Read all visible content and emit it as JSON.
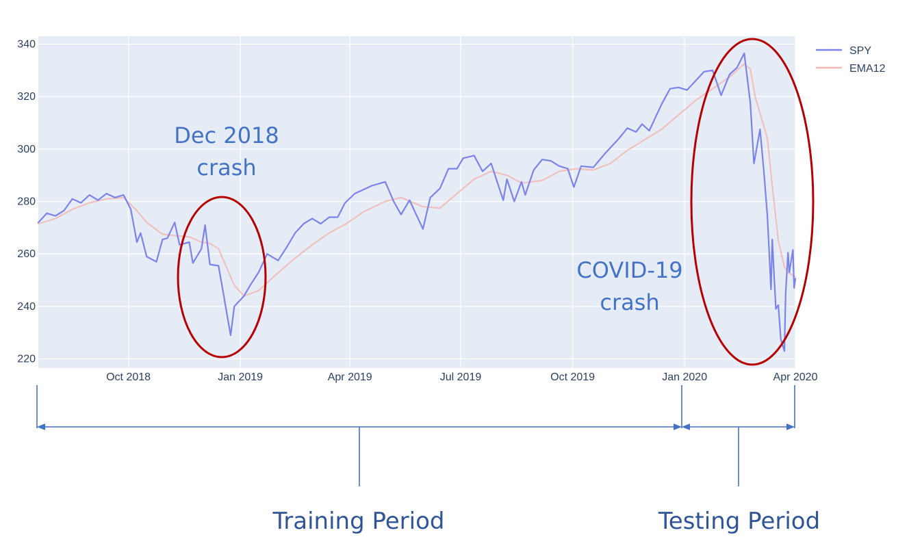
{
  "chart_data": {
    "type": "line",
    "title": "",
    "xlabel": "",
    "ylabel": "",
    "ylim": [
      216.5,
      343
    ],
    "xlim": [
      "2018-07-19",
      "2020-04-01"
    ],
    "grid": true,
    "legend_position": "top-right",
    "x_ticks": [
      {
        "date": "2018-10-01",
        "label": "Oct 2018"
      },
      {
        "date": "2019-01-01",
        "label": "Jan 2019"
      },
      {
        "date": "2019-04-01",
        "label": "Apr 2019"
      },
      {
        "date": "2019-07-01",
        "label": "Jul 2019"
      },
      {
        "date": "2019-10-01",
        "label": "Oct 2019"
      },
      {
        "date": "2020-01-01",
        "label": "Jan 2020"
      },
      {
        "date": "2020-04-01",
        "label": "Apr 2020"
      }
    ],
    "y_ticks": [
      220,
      240,
      260,
      280,
      300,
      320,
      340
    ],
    "series": [
      {
        "name": "SPY",
        "color": "#7b83eb",
        "x": [
          "2018-07-19",
          "2018-07-26",
          "2018-08-02",
          "2018-08-09",
          "2018-08-16",
          "2018-08-23",
          "2018-08-30",
          "2018-09-06",
          "2018-09-13",
          "2018-09-20",
          "2018-09-27",
          "2018-10-03",
          "2018-10-08",
          "2018-10-11",
          "2018-10-16",
          "2018-10-24",
          "2018-10-29",
          "2018-11-02",
          "2018-11-08",
          "2018-11-12",
          "2018-11-20",
          "2018-11-23",
          "2018-11-30",
          "2018-12-03",
          "2018-12-07",
          "2018-12-14",
          "2018-12-18",
          "2018-12-24",
          "2018-12-27",
          "2019-01-04",
          "2019-01-09",
          "2019-01-16",
          "2019-01-23",
          "2019-02-01",
          "2019-02-08",
          "2019-02-15",
          "2019-02-22",
          "2019-03-01",
          "2019-03-08",
          "2019-03-15",
          "2019-03-22",
          "2019-03-28",
          "2019-04-05",
          "2019-04-12",
          "2019-04-19",
          "2019-04-30",
          "2019-05-07",
          "2019-05-13",
          "2019-05-20",
          "2019-05-31",
          "2019-06-06",
          "2019-06-14",
          "2019-06-21",
          "2019-06-28",
          "2019-07-03",
          "2019-07-12",
          "2019-07-19",
          "2019-07-26",
          "2019-08-05",
          "2019-08-08",
          "2019-08-14",
          "2019-08-20",
          "2019-08-23",
          "2019-08-30",
          "2019-09-06",
          "2019-09-13",
          "2019-09-20",
          "2019-09-27",
          "2019-10-02",
          "2019-10-08",
          "2019-10-18",
          "2019-10-28",
          "2019-11-08",
          "2019-11-15",
          "2019-11-22",
          "2019-11-27",
          "2019-12-03",
          "2019-12-13",
          "2019-12-20",
          "2019-12-27",
          "2020-01-03",
          "2020-01-10",
          "2020-01-17",
          "2020-01-24",
          "2020-01-31",
          "2020-02-07",
          "2020-02-13",
          "2020-02-19",
          "2020-02-24",
          "2020-02-27",
          "2020-03-03",
          "2020-03-06",
          "2020-03-09",
          "2020-03-12",
          "2020-03-13",
          "2020-03-16",
          "2020-03-18",
          "2020-03-20",
          "2020-03-23",
          "2020-03-24",
          "2020-03-26",
          "2020-03-27",
          "2020-03-30",
          "2020-03-31",
          "2020-04-01"
        ],
        "values": [
          272.0,
          275.5,
          274.5,
          276.5,
          281.0,
          279.5,
          282.5,
          280.5,
          283.0,
          281.5,
          282.5,
          277.0,
          264.5,
          268.0,
          259.0,
          257.0,
          265.5,
          266.0,
          272.0,
          263.5,
          264.5,
          256.5,
          262.0,
          271.0,
          256.0,
          255.5,
          245.0,
          229.0,
          240.0,
          244.0,
          248.0,
          253.0,
          260.0,
          257.5,
          262.5,
          268.0,
          271.5,
          273.5,
          271.5,
          274.0,
          274.0,
          279.5,
          283.0,
          284.5,
          286.0,
          287.5,
          280.0,
          275.0,
          280.5,
          269.5,
          281.5,
          285.0,
          292.5,
          292.5,
          296.5,
          297.5,
          291.5,
          294.5,
          280.5,
          288.5,
          280.0,
          287.5,
          282.5,
          292.0,
          296.0,
          295.5,
          293.5,
          292.5,
          285.5,
          293.5,
          293.0,
          298.5,
          304.0,
          308.0,
          306.5,
          309.5,
          307.0,
          317.0,
          323.0,
          323.5,
          322.5,
          326.0,
          329.5,
          330.0,
          320.5,
          328.5,
          331.0,
          336.5,
          317.5,
          294.5,
          307.5,
          292.0,
          274.5,
          246.5,
          265.5,
          239.0,
          240.5,
          227.5,
          223.0,
          245.0,
          260.5,
          253.0,
          261.5,
          247.0,
          250.5
        ]
      },
      {
        "name": "EMA12",
        "color": "#f2b8b5",
        "x": [
          "2018-07-19",
          "2018-08-02",
          "2018-08-16",
          "2018-08-30",
          "2018-09-13",
          "2018-09-27",
          "2018-10-08",
          "2018-10-16",
          "2018-10-29",
          "2018-11-08",
          "2018-11-20",
          "2018-11-30",
          "2018-12-07",
          "2018-12-14",
          "2018-12-21",
          "2018-12-27",
          "2019-01-04",
          "2019-01-16",
          "2019-01-30",
          "2019-02-14",
          "2019-03-01",
          "2019-03-15",
          "2019-03-29",
          "2019-04-12",
          "2019-04-30",
          "2019-05-13",
          "2019-05-31",
          "2019-06-14",
          "2019-06-28",
          "2019-07-12",
          "2019-07-26",
          "2019-08-08",
          "2019-08-20",
          "2019-09-06",
          "2019-09-20",
          "2019-10-04",
          "2019-10-18",
          "2019-11-01",
          "2019-11-15",
          "2019-11-29",
          "2019-12-13",
          "2019-12-27",
          "2020-01-10",
          "2020-01-24",
          "2020-02-07",
          "2020-02-19",
          "2020-02-24",
          "2020-02-28",
          "2020-03-04",
          "2020-03-09",
          "2020-03-13",
          "2020-03-18",
          "2020-03-23",
          "2020-03-26",
          "2020-03-31",
          "2020-04-01"
        ],
        "values": [
          271.5,
          273.5,
          277.0,
          279.5,
          281.0,
          281.5,
          276.5,
          272.0,
          267.5,
          267.0,
          266.5,
          264.5,
          264.0,
          262.0,
          254.5,
          248.0,
          244.0,
          246.0,
          252.0,
          258.0,
          263.5,
          268.0,
          271.5,
          276.0,
          280.0,
          281.5,
          278.0,
          277.5,
          283.0,
          288.5,
          291.5,
          290.0,
          287.0,
          288.0,
          291.5,
          292.5,
          292.0,
          294.5,
          299.5,
          303.5,
          307.5,
          313.0,
          318.5,
          323.0,
          327.5,
          332.5,
          330.5,
          320.0,
          312.0,
          304.0,
          286.0,
          265.0,
          255.0,
          253.0,
          251.5,
          251.0
        ]
      }
    ],
    "annotations": [
      {
        "line1": "Dec 2018",
        "line2": "crash"
      },
      {
        "line1": "COVID-19",
        "line2": "crash"
      }
    ],
    "periods": [
      {
        "label": "Training Period",
        "start": "2018-07-19",
        "end": "2020-01-01"
      },
      {
        "label": "Testing Period",
        "start": "2020-01-01",
        "end": "2020-04-01"
      }
    ]
  }
}
